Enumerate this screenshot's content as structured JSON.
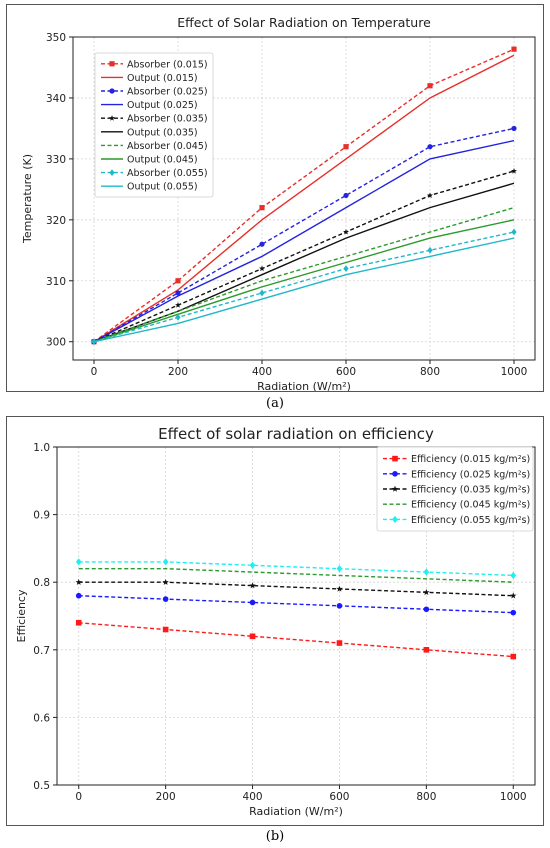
{
  "figure": {
    "caption_a": "(a)",
    "caption_b": "(b)"
  },
  "chart_data": [
    {
      "type": "line",
      "title": "Effect of Solar Radiation on Temperature",
      "xlabel": "Radiation (W/m²)",
      "ylabel": "Temperature (K)",
      "x": [
        0,
        200,
        400,
        600,
        800,
        1000
      ],
      "xlim": [
        -50,
        1050
      ],
      "ylim": [
        297,
        350
      ],
      "xticks": [
        0,
        200,
        400,
        600,
        800,
        1000
      ],
      "yticks": [
        300,
        310,
        320,
        330,
        340,
        350
      ],
      "grid": true,
      "legend": "top-left",
      "series": [
        {
          "name": "Absorber (0.015)",
          "values": [
            300,
            310,
            322,
            332,
            342,
            348
          ],
          "color": "#e8302a",
          "dash": true,
          "marker": "square"
        },
        {
          "name": "Output (0.015)",
          "values": [
            300,
            308.5,
            320,
            330,
            340,
            347
          ],
          "color": "#e8302a",
          "dash": false,
          "marker": "none"
        },
        {
          "name": "Absorber (0.025)",
          "values": [
            300,
            308,
            316,
            324,
            332,
            335
          ],
          "color": "#2323e0",
          "dash": true,
          "marker": "circle"
        },
        {
          "name": "Output (0.025)",
          "values": [
            300,
            307.5,
            314,
            322,
            330,
            333
          ],
          "color": "#2323e0",
          "dash": false,
          "marker": "none"
        },
        {
          "name": "Absorber (0.035)",
          "values": [
            300,
            306,
            312,
            318,
            324,
            328
          ],
          "color": "#111111",
          "dash": true,
          "marker": "star"
        },
        {
          "name": "Output (0.035)",
          "values": [
            300,
            305,
            311,
            317,
            322,
            326
          ],
          "color": "#111111",
          "dash": false,
          "marker": "none"
        },
        {
          "name": "Absorber (0.045)",
          "values": [
            300,
            305,
            310,
            314,
            318,
            322
          ],
          "color": "#2a9a2a",
          "dash": true,
          "marker": "none"
        },
        {
          "name": "Output (0.045)",
          "values": [
            300,
            304.5,
            309,
            313,
            317,
            320
          ],
          "color": "#2a9a2a",
          "dash": false,
          "marker": "none"
        },
        {
          "name": "Absorber (0.055)",
          "values": [
            300,
            304,
            308,
            312,
            315,
            318
          ],
          "color": "#20b8c8",
          "dash": true,
          "marker": "diamond"
        },
        {
          "name": "Output (0.055)",
          "values": [
            300,
            303,
            307,
            311,
            314,
            317
          ],
          "color": "#20b8c8",
          "dash": false,
          "marker": "none"
        }
      ]
    },
    {
      "type": "line",
      "title": "Effect of solar radiation on efficiency",
      "xlabel": "Radiation (W/m²)",
      "ylabel": "Efficiency",
      "x": [
        0,
        200,
        400,
        600,
        800,
        1000
      ],
      "xlim": [
        -50,
        1050
      ],
      "ylim": [
        0.5,
        1.0
      ],
      "xticks": [
        0,
        200,
        400,
        600,
        800,
        1000
      ],
      "yticks": [
        0.5,
        0.6,
        0.7,
        0.8,
        0.9,
        1.0
      ],
      "ytick_labels": [
        "0.5",
        "0.6",
        "0.7",
        "0.8",
        "0.9",
        "1.0"
      ],
      "grid": true,
      "legend": "top-right",
      "series": [
        {
          "name": "Efficiency (0.015 kg/m²s)",
          "values": [
            0.74,
            0.73,
            0.72,
            0.71,
            0.7,
            0.69
          ],
          "color": "#ff1a1a",
          "dash": true,
          "marker": "square"
        },
        {
          "name": "Efficiency (0.025 kg/m²s)",
          "values": [
            0.78,
            0.775,
            0.77,
            0.765,
            0.76,
            0.755
          ],
          "color": "#1a1aff",
          "dash": true,
          "marker": "circle"
        },
        {
          "name": "Efficiency (0.035 kg/m²s)",
          "values": [
            0.8,
            0.8,
            0.795,
            0.79,
            0.785,
            0.78
          ],
          "color": "#111111",
          "dash": true,
          "marker": "star"
        },
        {
          "name": "Efficiency (0.045 kg/m²s)",
          "values": [
            0.82,
            0.82,
            0.815,
            0.81,
            0.805,
            0.8
          ],
          "color": "#2a9a2a",
          "dash": true,
          "marker": "none"
        },
        {
          "name": "Efficiency (0.055 kg/m²s)",
          "values": [
            0.83,
            0.83,
            0.825,
            0.82,
            0.815,
            0.81
          ],
          "color": "#1ef0f0",
          "dash": true,
          "marker": "diamond"
        }
      ]
    }
  ]
}
